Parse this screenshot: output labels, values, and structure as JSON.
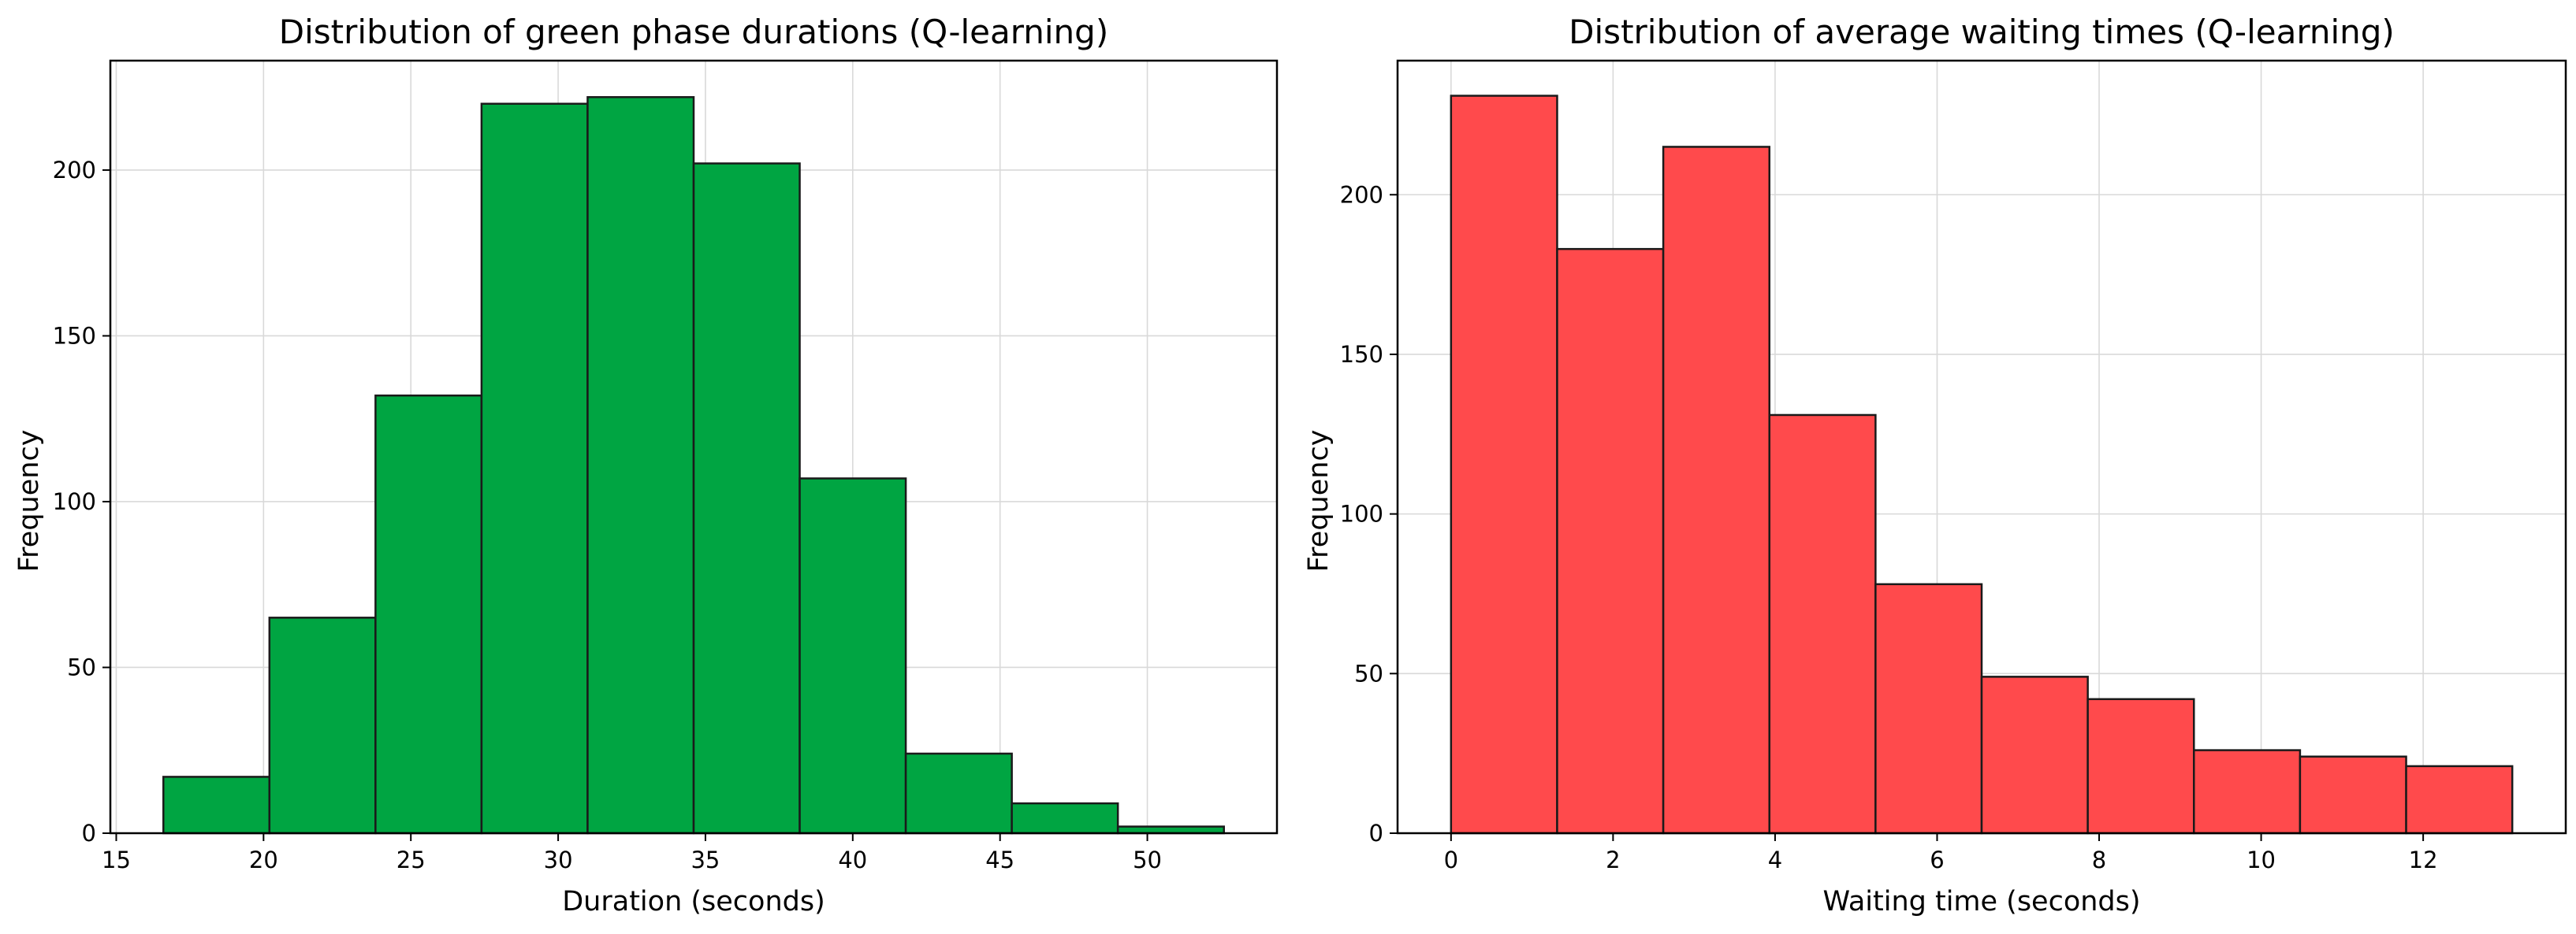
{
  "chart_data": [
    {
      "type": "bar",
      "title": "Distribution of green phase durations (Q-learning)",
      "xlabel": "Duration (seconds)",
      "ylabel": "Frequency",
      "color": "#00a542",
      "bin_edges": [
        16.6,
        20.2,
        23.8,
        27.4,
        31.0,
        34.6,
        38.2,
        41.8,
        45.4,
        49.0,
        52.6
      ],
      "values": [
        17,
        65,
        132,
        220,
        222,
        202,
        107,
        24,
        9,
        2
      ],
      "xlim": [
        14.8,
        54.4
      ],
      "ylim": [
        0,
        233
      ],
      "xticks": [
        15,
        20,
        25,
        30,
        35,
        40,
        45,
        50
      ],
      "yticks": [
        0,
        50,
        100,
        150,
        200
      ],
      "grid": true
    },
    {
      "type": "bar",
      "title": "Distribution of average waiting times (Q-learning)",
      "xlabel": "Waiting time (seconds)",
      "ylabel": "Frequency",
      "color": "#ff4a4c",
      "bin_edges": [
        0,
        1.31,
        2.62,
        3.93,
        5.24,
        6.55,
        7.86,
        9.17,
        10.48,
        11.79,
        13.1
      ],
      "values": [
        231,
        183,
        215,
        131,
        78,
        49,
        42,
        26,
        24,
        21
      ],
      "xlim": [
        -0.66,
        13.76
      ],
      "ylim": [
        0,
        242
      ],
      "xticks": [
        0,
        2,
        4,
        6,
        8,
        10,
        12
      ],
      "yticks": [
        0,
        50,
        100,
        150,
        200
      ],
      "grid": true
    }
  ]
}
